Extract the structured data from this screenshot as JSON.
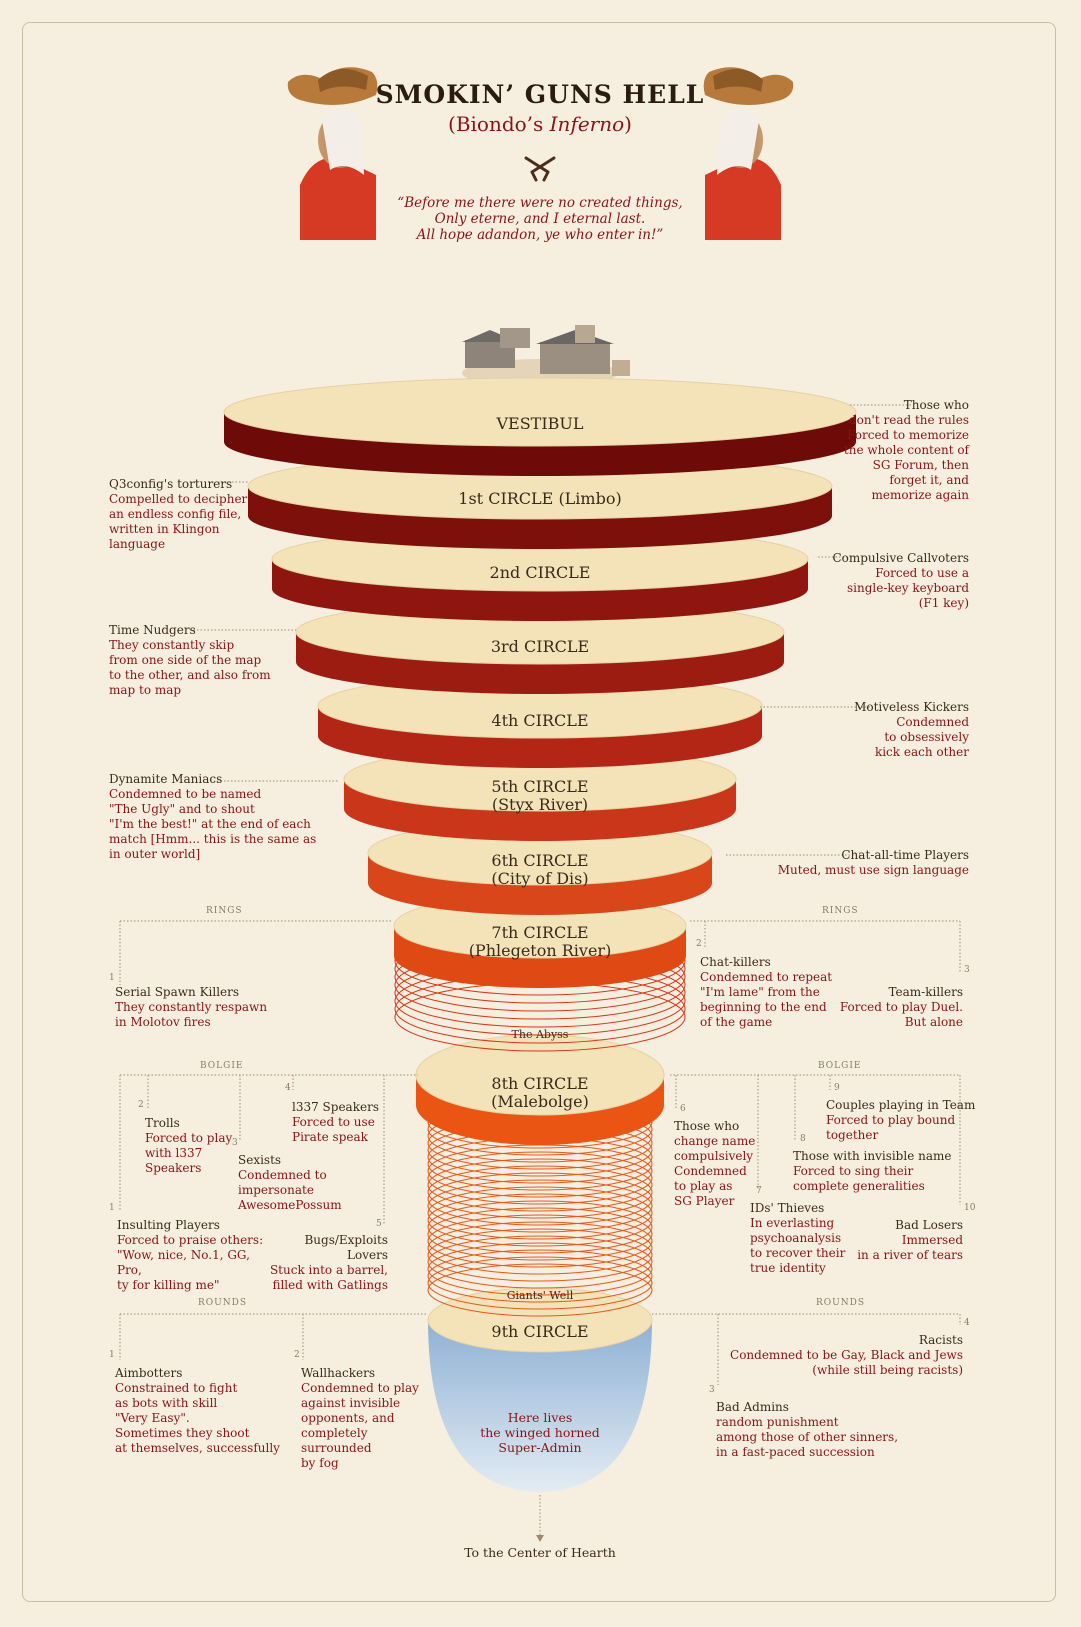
{
  "header": {
    "title": "SMOKIN’ GUNS HELL",
    "subtitle_prefix": "(Biondo’s ",
    "subtitle_italic": "Inferno",
    "subtitle_suffix": ")",
    "quote": "“Before me there were no created things,\nOnly eterne, and I eternal last.\nAll hope adandon, ye who enter in!”"
  },
  "circles": [
    {
      "label": "VESTIBUL"
    },
    {
      "label": "1st CIRCLE (Limbo)"
    },
    {
      "label": "2nd CIRCLE"
    },
    {
      "label": "3rd CIRCLE"
    },
    {
      "label": "4th CIRCLE"
    },
    {
      "label": "5th CIRCLE\n(Styx River)"
    },
    {
      "label": "6th CIRCLE\n(City of Dis)"
    },
    {
      "label": "7th CIRCLE\n(Phlegeton River)"
    },
    {
      "label": "8th CIRCLE\n(Malebolge)"
    },
    {
      "label": "9th CIRCLE"
    }
  ],
  "abyss_label": "The Abyss",
  "well_label": "Giants' Well",
  "bottom_text": "Here lives\nthe winged horned\nSuper-Admin",
  "center_label": "To the Center of Hearth",
  "section_labels": {
    "rings": "RINGS",
    "bolgie": "BOLGIE",
    "rounds": "ROUNDS"
  },
  "notes": {
    "vestibul": {
      "head": "Those who",
      "body": "don't read the rules\nForced to memorize\nthe whole content of\nSG Forum, then\nforget it, and\nmemorize again"
    },
    "limbo": {
      "head": "Q3config's torturers",
      "body": "Compelled to decipher\nan endless config file,\nwritten in Klingon\nlanguage"
    },
    "c2": {
      "head": "Compulsive Callvoters",
      "body": "Forced to use a\nsingle-key keyboard\n(F1 key)"
    },
    "c3": {
      "head": "Time Nudgers",
      "body": "They constantly skip\nfrom one side of the map\nto the other, and also from\nmap to map"
    },
    "c4": {
      "head": "Motiveless Kickers",
      "body": "Condemned\nto obsessively\nkick each other"
    },
    "c5": {
      "head": "Dynamite Maniacs",
      "body": "Condemned to be named\n\"The Ugly\" and to shout\n\"I'm the best!\" at the end of each\nmatch [Hmm... this is the same as\nin outer world]"
    },
    "c6": {
      "head": "Chat-all-time Players",
      "body": "Muted, must use sign language"
    },
    "r1": {
      "num": "1",
      "head": "Serial Spawn Killers",
      "body": "They constantly respawn\nin Molotov fires"
    },
    "r2": {
      "num": "2",
      "head": "Chat-killers",
      "body": "Condemned to repeat\n\"I'm lame\" from the\nbeginning to the end\nof the game"
    },
    "r3": {
      "num": "3",
      "head": "Team-killers",
      "body": "Forced to play Duel.\nBut alone"
    },
    "b1": {
      "num": "1",
      "head": "Insulting Players",
      "body": "Forced to praise others:\n\"Wow, nice, No.1, GG, Pro,\nty for killing me\""
    },
    "b2": {
      "num": "2",
      "head": "Trolls",
      "body": "Forced to play\nwith l337\nSpeakers"
    },
    "b3": {
      "num": "3",
      "head": "Sexists",
      "body": "Condemned to\nimpersonate\nAwesomePossum"
    },
    "b4": {
      "num": "4",
      "head": "l337 Speakers",
      "body": "Forced to use\nPirate speak"
    },
    "b5": {
      "num": "5",
      "head": "Bugs/Exploits Lovers",
      "body": "Stuck into a barrel,\nfilled with Gatlings"
    },
    "b6": {
      "num": "6",
      "head": "Those who",
      "body": "change name\ncompulsively\nCondemned\nto play as\nSG Player"
    },
    "b7": {
      "num": "7",
      "head": "IDs' Thieves",
      "body": "In everlasting\npsychoanalysis\nto recover their\ntrue identity"
    },
    "b8": {
      "num": "8",
      "head": "Those with invisible name",
      "body": "Forced to sing their\ncomplete generalities"
    },
    "b9": {
      "num": "9",
      "head": "Couples playing in Team",
      "body": "Forced to play bound\ntogether"
    },
    "b10": {
      "num": "10",
      "head": "Bad Losers",
      "body": "Immersed\nin a river of tears"
    },
    "d1": {
      "num": "1",
      "head": "Aimbotters",
      "body": "Constrained to fight\nas bots with skill\n\"Very Easy\".\nSometimes they shoot\nat themselves, successfully"
    },
    "d2": {
      "num": "2",
      "head": "Wallhackers",
      "body": "Condemned to play\nagainst invisible\nopponents, and\ncompletely surrounded\nby fog"
    },
    "d3": {
      "num": "3",
      "head": "Bad Admins",
      "body": "random punishment\namong those of other sinners,\nin a fast-paced succession"
    },
    "d4": {
      "num": "4",
      "head": "Racists",
      "body": "Condemned to be Gay, Black and Jews\n(while still being racists)"
    }
  }
}
